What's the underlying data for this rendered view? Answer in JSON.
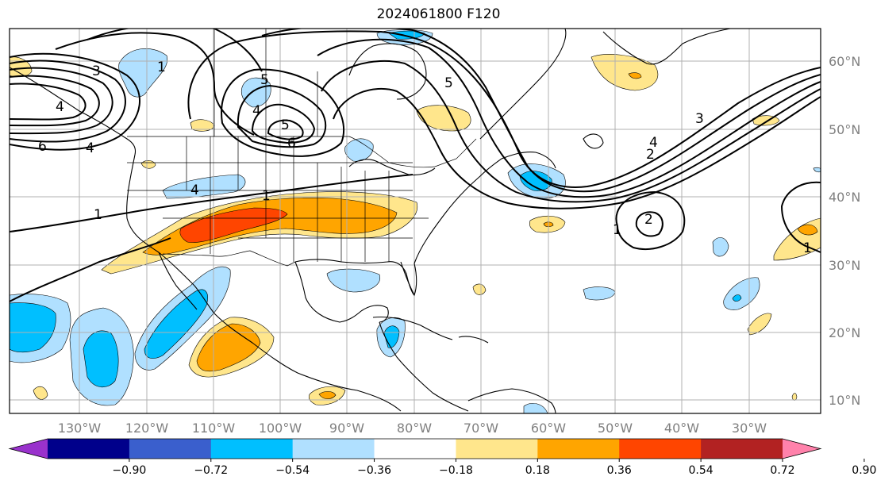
{
  "title": "2024061800 F120",
  "longitude_labels": [
    "130°W",
    "120°W",
    "110°W",
    "100°W",
    "90°W",
    "80°W",
    "70°W",
    "60°W",
    "50°W",
    "40°W",
    "30°W"
  ],
  "latitude_labels": [
    "60°N",
    "50°N",
    "40°N",
    "30°N",
    "20°N",
    "10°N"
  ],
  "colorbar": {
    "tick_labels": [
      "−0.90",
      "−0.72",
      "−0.54",
      "−0.36",
      "−0.18",
      "0.18",
      "0.36",
      "0.54",
      "0.72",
      "0.90"
    ],
    "colors": [
      "#9932cc",
      "#00008b",
      "#3a5fcd",
      "#00bfff",
      "#b0e0ff",
      "#ffffff",
      "#ffe68c",
      "#ffa500",
      "#ff4500",
      "#b22222",
      "#ff82ab"
    ]
  },
  "contour_labels": [
    "3",
    "4",
    "6",
    "4",
    "1",
    "5",
    "4",
    "4",
    "5",
    "6",
    "1",
    "5",
    "4",
    "2",
    "3",
    "1",
    "2",
    "1",
    "1"
  ],
  "palette": {
    "land_line": "#000000",
    "grid": "#b0b0b0",
    "contour": "#000000"
  }
}
